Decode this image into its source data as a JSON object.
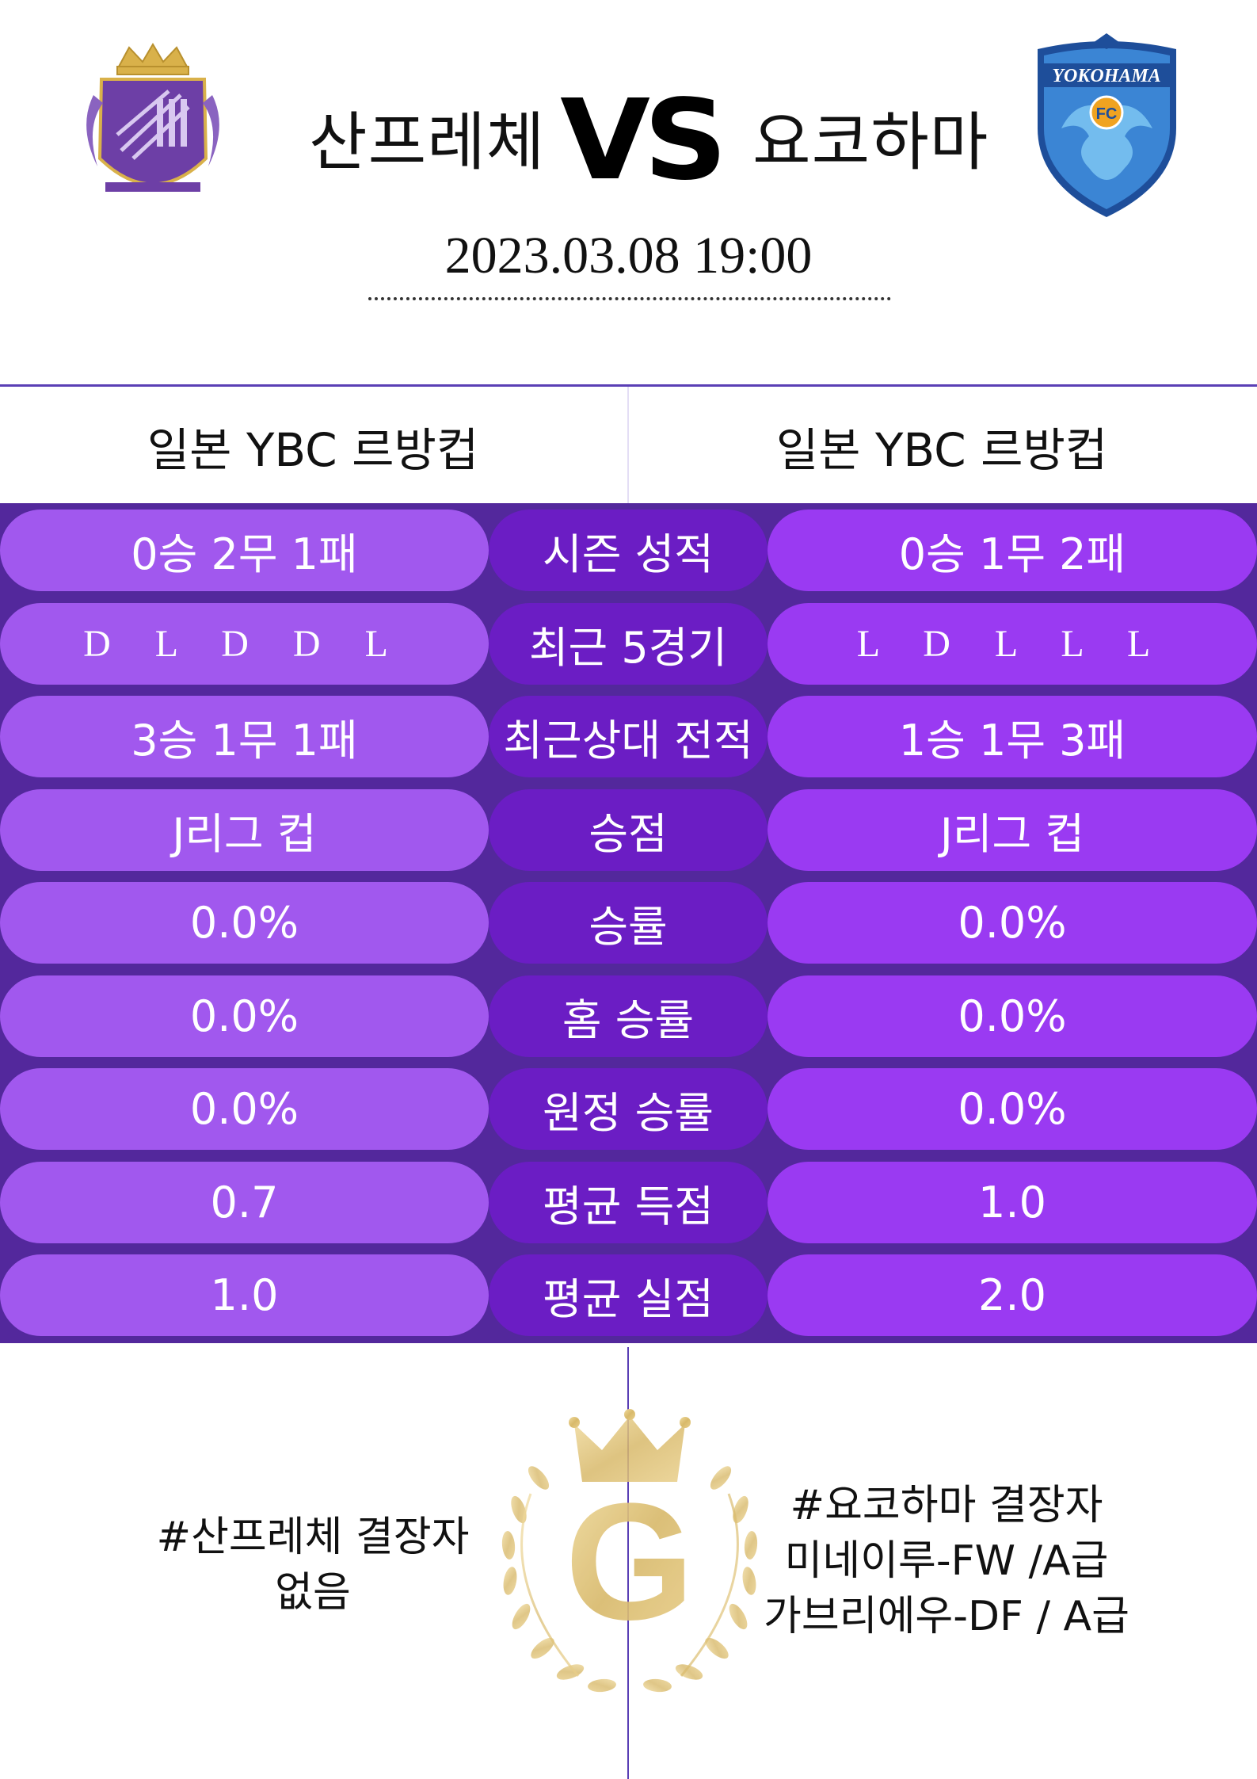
{
  "match": {
    "home": "산프레체",
    "away": "요코하마",
    "vs": "VS",
    "datetime": "2023.03.08  19:00"
  },
  "league": {
    "home": "일본 YBC 르방컵",
    "away": "일본 YBC 르방컵"
  },
  "stats": [
    {
      "home": "0승 2무 1패",
      "label": "시즌 성적",
      "away": "0승 1무 2패"
    },
    {
      "home": "D L D D L",
      "label": "최근 5경기",
      "away": "L D L L L"
    },
    {
      "home": "3승 1무 1패",
      "label": "최근상대 전적",
      "away": "1승 1무 3패"
    },
    {
      "home": "J리그 컵",
      "label": "승점",
      "away": "J리그 컵"
    },
    {
      "home": "0.0%",
      "label": "승률",
      "away": "0.0%"
    },
    {
      "home": "0.0%",
      "label": "홈 승률",
      "away": "0.0%"
    },
    {
      "home": "0.0%",
      "label": "원정 승률",
      "away": "0.0%"
    },
    {
      "home": "0.7",
      "label": "평균 득점",
      "away": "1.0"
    },
    {
      "home": "1.0",
      "label": "평균 실점",
      "away": "2.0"
    }
  ],
  "absences": {
    "home_title": "#산프레체 결장자",
    "home_line1": "없음",
    "away_title": "#요코하마 결장자",
    "away_line1": "미네이루-FW /A급",
    "away_line2": "가브리에우-DF / A급"
  },
  "logos": {
    "home_icon": "sanfrecce-crest-icon",
    "away_icon": "yokohama-fc-crest-icon",
    "away_text": "YOKOHAMA",
    "away_badge": "FC",
    "emblem_letter": "G"
  },
  "colors": {
    "purple_dark": "#53289c",
    "pill_left": "#a158ee",
    "pill_mid": "#6b1dc4",
    "pill_right": "#9a3af2",
    "gold": "#d8b96a"
  }
}
